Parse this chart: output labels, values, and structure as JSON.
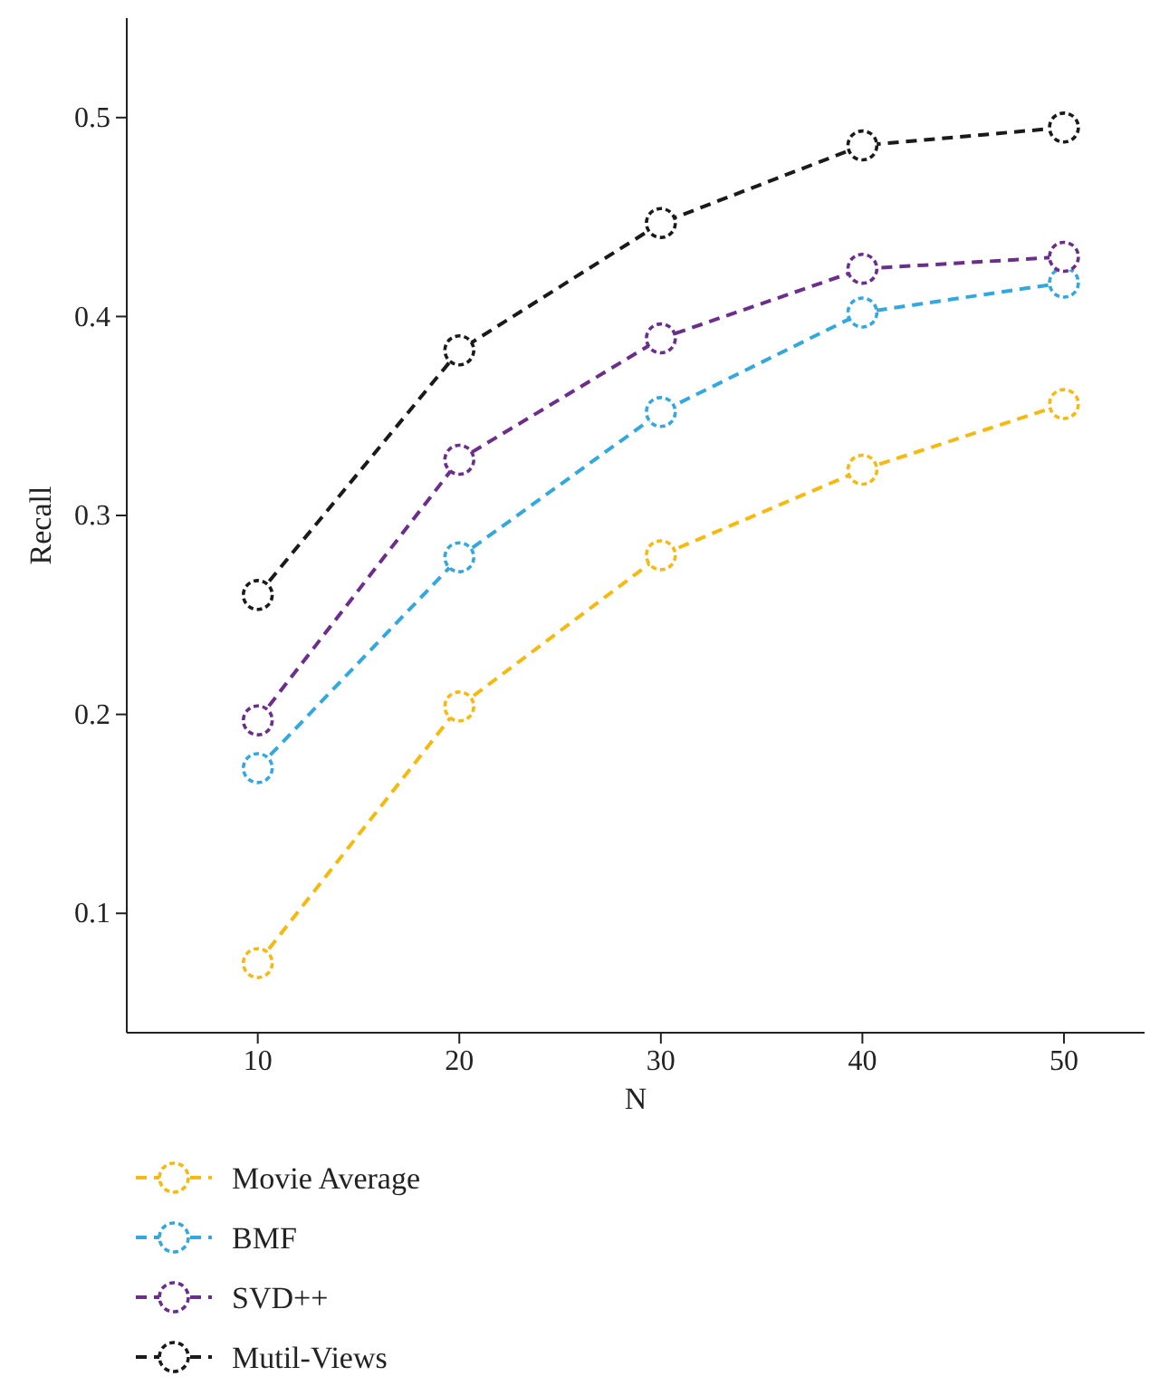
{
  "chart_data": {
    "type": "line",
    "xlabel": "N",
    "ylabel": "Recall",
    "x": [
      10,
      20,
      30,
      40,
      50
    ],
    "xlim": [
      3.5,
      54
    ],
    "xticks": [
      10,
      20,
      30,
      40,
      50
    ],
    "ylim": [
      0.04,
      0.55
    ],
    "yticks": [
      0.1,
      0.2,
      0.3,
      0.4,
      0.5
    ],
    "marker": "circle",
    "line_style": "dashed",
    "legend": "bottom",
    "grid": false,
    "series": [
      {
        "name": "Movie Average",
        "color": "#f5b90f",
        "values": [
          0.075,
          0.204,
          0.28,
          0.323,
          0.356
        ]
      },
      {
        "name": "BMF",
        "color": "#33a8df",
        "values": [
          0.173,
          0.279,
          0.352,
          0.402,
          0.417
        ]
      },
      {
        "name": "SVD++",
        "color": "#6c2e8c",
        "values": [
          0.197,
          0.328,
          0.389,
          0.424,
          0.43
        ]
      },
      {
        "name": "Mutil-Views",
        "color": "#1a1a1a",
        "values": [
          0.26,
          0.383,
          0.447,
          0.486,
          0.495
        ]
      }
    ]
  }
}
